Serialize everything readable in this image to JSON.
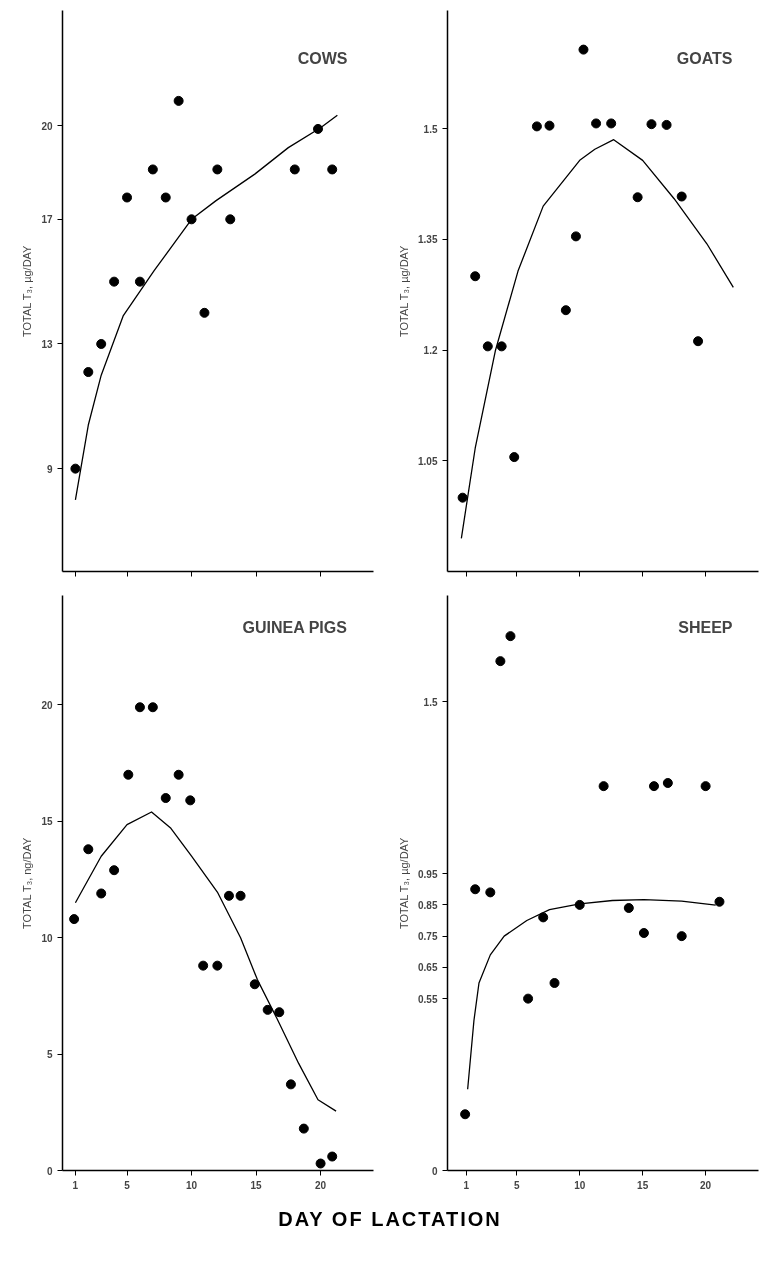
{
  "chart_data": [
    {
      "type": "scatter",
      "title": "COWS",
      "ylabel": "TOTAL T₃, µg/DAY",
      "xlim": [
        0,
        24.1
      ],
      "xticks": [
        1,
        5,
        10,
        15,
        20
      ],
      "ylim": [
        5.7,
        23.7
      ],
      "yticks": [
        9,
        13,
        17,
        20
      ],
      "tick_labels": "y",
      "grid": false,
      "series": [
        {
          "type": "scatter",
          "marker": "circle",
          "color": "#000000",
          "x": [
            1,
            2,
            3,
            4,
            5,
            6,
            7,
            8,
            9,
            10,
            11,
            12,
            13,
            18,
            19.8,
            20.9
          ],
          "values": [
            9,
            12.1,
            13,
            15.0,
            17.7,
            15.0,
            18.6,
            17.7,
            20.8,
            17.0,
            14.0,
            18.6,
            17.0,
            18.6,
            19.9,
            18.6
          ]
        },
        {
          "type": "line",
          "color": "#000000",
          "x": [
            1,
            2,
            3,
            4.7,
            7.1,
            10,
            11.9,
            14.9,
            17.5,
            20,
            21.3
          ],
          "values": [
            8.0,
            10.4,
            12.0,
            13.9,
            15.35,
            17.0,
            17.6,
            18.45,
            19.3,
            19.94,
            20.34
          ]
        }
      ]
    },
    {
      "type": "scatter",
      "title": "GOATS",
      "ylabel": "TOTAL T₃, µg/DAY",
      "xlim": [
        -0.5,
        24.2
      ],
      "xticks": [
        1,
        5,
        10,
        15,
        20
      ],
      "ylim": [
        0.9,
        1.66
      ],
      "yticks": [
        1.05,
        1.2,
        1.35,
        1.5
      ],
      "tick_labels": "y",
      "grid": false,
      "series": [
        {
          "type": "scatter",
          "marker": "circle",
          "color": "#000000",
          "x": [
            0.7,
            1.7,
            2.7,
            3.8,
            4.8,
            6.6,
            7.6,
            8.9,
            9.7,
            10.3,
            11.3,
            12.5,
            14.6,
            15.7,
            16.9,
            18.1,
            19.4
          ],
          "values": [
            1.0,
            1.3,
            1.205,
            1.205,
            1.055,
            1.503,
            1.504,
            1.254,
            1.354,
            1.607,
            1.507,
            1.507,
            1.407,
            1.506,
            1.505,
            1.408,
            1.212
          ]
        },
        {
          "type": "line",
          "color": "#000000",
          "x": [
            0.6,
            1.7,
            3.3,
            5.1,
            7.1,
            10,
            11.2,
            12.7,
            15,
            17.5,
            20.1,
            22.2
          ],
          "values": [
            0.945,
            1.067,
            1.199,
            1.307,
            1.395,
            1.457,
            1.472,
            1.485,
            1.457,
            1.405,
            1.344,
            1.285
          ]
        }
      ]
    },
    {
      "type": "scatter",
      "title": "GUINEA PIGS",
      "ylabel": "TOTAL T₃, ng/DAY",
      "xlabel": "DAY OF LACTATION",
      "xlim": [
        0,
        24.1
      ],
      "xticks": [
        1,
        5,
        10,
        15,
        20
      ],
      "ylim": [
        0,
        24.7
      ],
      "yticks": [
        0,
        5,
        10,
        15,
        20
      ],
      "grid": false,
      "series": [
        {
          "type": "scatter",
          "marker": "circle",
          "color": "#000000",
          "x": [
            0.9,
            2.0,
            3.0,
            4.0,
            5.1,
            6.0,
            7.0,
            8.0,
            9.0,
            9.9,
            10.9,
            12.0,
            12.9,
            13.8,
            14.9,
            15.9,
            16.8,
            17.7,
            18.7,
            20.0,
            20.9
          ],
          "values": [
            10.8,
            13.8,
            11.9,
            12.9,
            17.0,
            19.9,
            19.9,
            16.0,
            17.0,
            15.9,
            8.8,
            8.8,
            11.8,
            11.8,
            8.0,
            6.9,
            6.8,
            3.7,
            1.8,
            0.3,
            0.6
          ]
        },
        {
          "type": "line",
          "color": "#000000",
          "x": [
            1,
            3,
            5,
            6.9,
            8.4,
            10,
            12,
            13.8,
            15.1,
            16.6,
            18.3,
            19.8,
            21.2
          ],
          "values": [
            11.5,
            13.5,
            14.86,
            15.4,
            14.7,
            13.5,
            11.96,
            10.0,
            8.2,
            6.55,
            4.6,
            3.04,
            2.55
          ]
        }
      ]
    },
    {
      "type": "scatter",
      "title": "SHEEP",
      "ylabel": "TOTAL T₃, µg/DAY",
      "xlim": [
        -0.5,
        24.2
      ],
      "xticks": [
        1,
        5,
        10,
        15,
        20
      ],
      "ylim": [
        0,
        1.84
      ],
      "yticks": [
        0,
        0.55,
        0.65,
        0.75,
        0.85,
        0.95,
        1.5
      ],
      "grid": false,
      "series": [
        {
          "type": "scatter",
          "marker": "circle",
          "color": "#000000",
          "x": [
            0.9,
            1.7,
            2.9,
            3.7,
            4.5,
            5.9,
            7.1,
            8.0,
            10.0,
            11.9,
            13.9,
            15.1,
            15.9,
            17.0,
            18.1,
            20.0,
            21.1
          ],
          "values": [
            0.18,
            0.9,
            0.89,
            1.63,
            1.71,
            0.55,
            0.81,
            0.6,
            0.85,
            1.23,
            0.84,
            0.76,
            1.23,
            1.24,
            0.75,
            1.23,
            0.86
          ]
        },
        {
          "type": "line",
          "color": "#000000",
          "x": [
            1.1,
            1.6,
            2.0,
            2.9,
            4.0,
            5.8,
            7.6,
            10,
            12.6,
            15.1,
            18.1,
            20.8
          ],
          "values": [
            0.26,
            0.48,
            0.6,
            0.69,
            0.75,
            0.8,
            0.835,
            0.853,
            0.864,
            0.867,
            0.862,
            0.849
          ]
        }
      ]
    }
  ]
}
